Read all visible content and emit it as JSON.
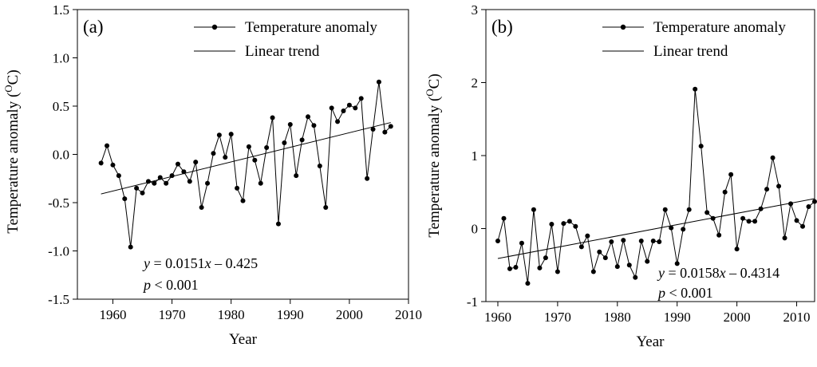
{
  "chart_data": [
    {
      "type": "line",
      "panel_label": "(a)",
      "xlabel": "Year",
      "ylabel": "Temperature anomaly (",
      "ylabel_sup": "O",
      "ylabel_unit": "C)",
      "xlim": [
        1954,
        2010
      ],
      "ylim": [
        -1.5,
        1.5
      ],
      "xticks": [
        1960,
        1970,
        1980,
        1990,
        2000,
        2010
      ],
      "yticks": [
        -1.5,
        -1.0,
        -0.5,
        0.0,
        0.5,
        1.0,
        1.5
      ],
      "ytick_labels": [
        "-1.5",
        "-1.0",
        "-0.5",
        "0.0",
        "0.5",
        "1.0",
        "1.5"
      ],
      "legend": {
        "position": "top-right",
        "entries": [
          "Temperature anomaly",
          "Linear trend"
        ]
      },
      "series": [
        {
          "name": "Temperature anomaly",
          "x": [
            1958,
            1959,
            1960,
            1961,
            1962,
            1963,
            1964,
            1965,
            1966,
            1967,
            1968,
            1969,
            1970,
            1971,
            1972,
            1973,
            1974,
            1975,
            1976,
            1977,
            1978,
            1979,
            1980,
            1981,
            1982,
            1983,
            1984,
            1985,
            1986,
            1987,
            1988,
            1989,
            1990,
            1991,
            1992,
            1993,
            1994,
            1995,
            1996,
            1997,
            1998,
            1999,
            2000,
            2001,
            2002,
            2003,
            2004,
            2005,
            2006,
            2007
          ],
          "y": [
            -0.09,
            0.09,
            -0.11,
            -0.22,
            -0.46,
            -0.96,
            -0.35,
            -0.4,
            -0.28,
            -0.3,
            -0.24,
            -0.3,
            -0.22,
            -0.1,
            -0.18,
            -0.28,
            -0.08,
            -0.55,
            -0.3,
            0.01,
            0.2,
            -0.03,
            0.21,
            -0.35,
            -0.48,
            0.08,
            -0.06,
            -0.3,
            0.07,
            0.38,
            -0.72,
            0.12,
            0.31,
            -0.22,
            0.15,
            0.39,
            0.3,
            -0.12,
            -0.55,
            0.48,
            0.34,
            0.45,
            0.51,
            0.48,
            0.58,
            -0.25,
            0.26,
            0.75,
            0.23,
            0.29
          ]
        },
        {
          "name": "Linear trend",
          "x": [
            1958,
            2007
          ],
          "y": [
            -0.41,
            0.33
          ]
        }
      ],
      "annotation": {
        "eq_var": "y",
        "eq_rest": " = 0.0151",
        "eq_xvar": "x",
        "eq_tail": " – 0.425",
        "p_var": "p",
        "p_rest": " < 0.001"
      }
    },
    {
      "type": "line",
      "panel_label": "(b)",
      "xlabel": "Year",
      "ylabel": "Temperature anomaly (",
      "ylabel_sup": "O",
      "ylabel_unit": "C)",
      "xlim": [
        1958,
        2013
      ],
      "ylim": [
        -1,
        3
      ],
      "xticks": [
        1960,
        1970,
        1980,
        1990,
        2000,
        2010
      ],
      "yticks": [
        -1,
        0,
        1,
        2,
        3
      ],
      "ytick_labels": [
        "-1",
        "0",
        "1",
        "2",
        "3"
      ],
      "legend": {
        "position": "top-right",
        "entries": [
          "Temperature anomaly",
          "Linear trend"
        ]
      },
      "series": [
        {
          "name": "Temperature anomaly",
          "x": [
            1960,
            1961,
            1962,
            1963,
            1964,
            1965,
            1966,
            1967,
            1968,
            1969,
            1970,
            1971,
            1972,
            1973,
            1974,
            1975,
            1976,
            1977,
            1978,
            1979,
            1980,
            1981,
            1982,
            1983,
            1984,
            1985,
            1986,
            1987,
            1988,
            1989,
            1990,
            1991,
            1992,
            1993,
            1994,
            1995,
            1996,
            1997,
            1998,
            1999,
            2000,
            2001,
            2002,
            2003,
            2004,
            2005,
            2006,
            2007,
            2008,
            2009,
            2010,
            2011,
            2012,
            2013
          ],
          "y": [
            -0.17,
            0.14,
            -0.55,
            -0.53,
            -0.2,
            -0.75,
            0.26,
            -0.54,
            -0.4,
            0.06,
            -0.59,
            0.07,
            0.1,
            0.03,
            -0.25,
            -0.1,
            -0.59,
            -0.32,
            -0.4,
            -0.18,
            -0.52,
            -0.16,
            -0.5,
            -0.67,
            -0.17,
            -0.45,
            -0.17,
            -0.18,
            0.26,
            0.01,
            -0.48,
            -0.01,
            0.26,
            1.91,
            1.13,
            0.22,
            0.14,
            -0.09,
            0.5,
            0.74,
            -0.28,
            0.14,
            0.1,
            0.1,
            0.27,
            0.54,
            0.97,
            0.58,
            -0.13,
            0.34,
            0.11,
            0.03,
            0.3,
            0.37
          ]
        },
        {
          "name": "Linear trend",
          "x": [
            1960,
            2013
          ],
          "y": [
            -0.41,
            0.41
          ]
        }
      ],
      "annotation": {
        "eq_var": "y",
        "eq_rest": " = 0.0158",
        "eq_xvar": "x",
        "eq_tail": " – 0.4314",
        "p_var": "p",
        "p_rest": " < 0.001"
      }
    }
  ]
}
